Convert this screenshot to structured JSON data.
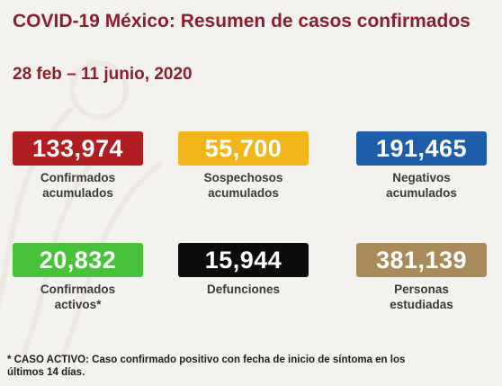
{
  "header": {
    "title": "COVID-19 México: Resumen de casos confirmados",
    "date_range": "28 feb – 11 junio, 2020"
  },
  "stats": [
    {
      "value": "133,974",
      "label_line1": "Confirmados",
      "label_line2": "acumulados",
      "color": "#b01e22"
    },
    {
      "value": "55,700",
      "label_line1": "Sospechosos",
      "label_line2": "acumulados",
      "color": "#f2b61c"
    },
    {
      "value": "191,465",
      "label_line1": "Negativos",
      "label_line2": "acumulados",
      "color": "#1f5dab"
    },
    {
      "value": "20,832",
      "label_line1": "Confirmados",
      "label_line2": "activos*",
      "color": "#47c23a"
    },
    {
      "value": "15,944",
      "label_line1": "Defunciones",
      "label_line2": "",
      "color": "#0c0c0c"
    },
    {
      "value": "381,139",
      "label_line1": "Personas",
      "label_line2": "estudiadas",
      "color": "#a98a5b"
    }
  ],
  "footnote": {
    "line1": "* CASO ACTIVO: Caso confirmado positivo con fecha de inicio de síntoma en los",
    "line2": "últimos 14 días."
  },
  "theme": {
    "title_color": "#8c1f2d",
    "background": "#f4f2ee"
  }
}
